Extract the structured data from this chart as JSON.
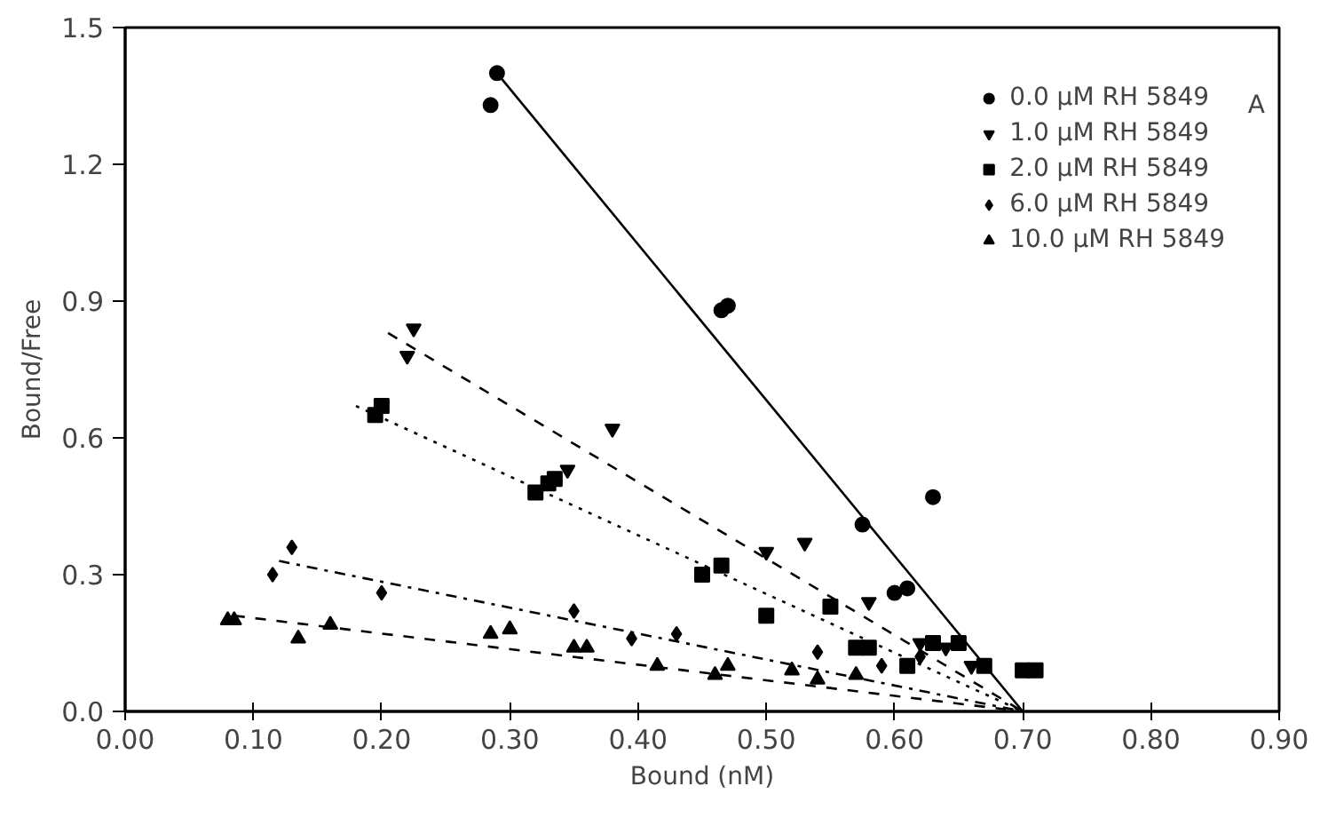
{
  "chart_data": {
    "type": "scatter",
    "xlabel": "Bound (nM)",
    "ylabel": "Bound/Free",
    "xlim": [
      0,
      0.9
    ],
    "ylim": [
      0,
      1.5
    ],
    "xticks": [
      {
        "value": 0,
        "label": "0.00"
      },
      {
        "value": 0.1,
        "label": "0.10"
      },
      {
        "value": 0.2,
        "label": "0.20"
      },
      {
        "value": 0.3,
        "label": "0.30"
      },
      {
        "value": 0.4,
        "label": "0.40"
      },
      {
        "value": 0.5,
        "label": "0.50"
      },
      {
        "value": 0.6,
        "label": "0.60"
      },
      {
        "value": 0.7,
        "label": "0.70"
      },
      {
        "value": 0.8,
        "label": "0.80"
      },
      {
        "value": 0.9,
        "label": "0.90"
      }
    ],
    "yticks": [
      {
        "value": 0,
        "label": "0.0"
      },
      {
        "value": 0.3,
        "label": "0.3"
      },
      {
        "value": 0.6,
        "label": "0.6"
      },
      {
        "value": 0.9,
        "label": "0.9"
      },
      {
        "value": 1.2,
        "label": "1.2"
      },
      {
        "value": 1.5,
        "label": "1.5"
      }
    ],
    "grid": false,
    "legend": "top right",
    "annotations": [
      "A"
    ],
    "series": [
      {
        "name": "0.0 µM RH 5849",
        "color": "#000000",
        "marker": "circle",
        "x": [
          0.285,
          0.29,
          0.465,
          0.47,
          0.575,
          0.63,
          0.6,
          0.61
        ],
        "values": [
          1.33,
          1.4,
          0.88,
          0.89,
          0.41,
          0.47,
          0.26,
          0.27
        ]
      },
      {
        "name": "1.0 µM RH 5849",
        "color": "#000000",
        "x": [
          0.225,
          0.22,
          0.38,
          0.345,
          0.5,
          0.53,
          0.58,
          0.62,
          0.64,
          0.66
        ],
        "values": [
          0.84,
          0.78,
          0.62,
          0.53,
          0.35,
          0.37,
          0.24,
          0.15,
          0.14,
          0.1
        ]
      },
      {
        "name": "2.0 µM RH 5849",
        "color": "#000000",
        "marker": "square",
        "x": [
          0.195,
          0.2,
          0.32,
          0.33,
          0.335,
          0.45,
          0.465,
          0.5,
          0.55,
          0.57,
          0.58,
          0.61,
          0.63,
          0.65,
          0.67,
          0.7,
          0.71
        ],
        "values": [
          0.65,
          0.67,
          0.48,
          0.5,
          0.51,
          0.3,
          0.32,
          0.21,
          0.23,
          0.14,
          0.14,
          0.1,
          0.15,
          0.15,
          0.1,
          0.09,
          0.09
        ]
      },
      {
        "name": "6.0 µM RH 5849",
        "color": "#000000",
        "marker": "diamond",
        "x": [
          0.115,
          0.13,
          0.2,
          0.35,
          0.395,
          0.43,
          0.54,
          0.59,
          0.62
        ],
        "values": [
          0.3,
          0.36,
          0.26,
          0.22,
          0.16,
          0.17,
          0.13,
          0.1,
          0.12
        ]
      },
      {
        "name": "10.0 µM RH 5849",
        "color": "#000000",
        "marker": "triangle",
        "x": [
          0.08,
          0.085,
          0.135,
          0.16,
          0.285,
          0.3,
          0.35,
          0.36,
          0.415,
          0.46,
          0.47,
          0.52,
          0.54,
          0.57
        ],
        "values": [
          0.2,
          0.2,
          0.16,
          0.19,
          0.17,
          0.18,
          0.14,
          0.14,
          0.1,
          0.08,
          0.1,
          0.09,
          0.07,
          0.08
        ]
      },
      {
        "type": "line",
        "color": "#000000",
        "line_style": "solid",
        "x": [
          0.29,
          0.7
        ],
        "values": [
          1.4,
          0.0
        ]
      },
      {
        "type": "line",
        "color": "#000000",
        "line_style": "dashed",
        "x": [
          0.205,
          0.7
        ],
        "values": [
          0.83,
          0.0
        ]
      },
      {
        "type": "line",
        "color": "#000000",
        "line_style": "dotted",
        "x": [
          0.18,
          0.7
        ],
        "values": [
          0.67,
          0.0
        ]
      },
      {
        "type": "line",
        "color": "#000000",
        "line_style": "dashdot",
        "x": [
          0.12,
          0.7
        ],
        "values": [
          0.33,
          0.0
        ]
      },
      {
        "type": "line",
        "color": "#000000",
        "line_style": "dashed",
        "x": [
          0.085,
          0.7
        ],
        "values": [
          0.21,
          0.0
        ]
      }
    ]
  }
}
